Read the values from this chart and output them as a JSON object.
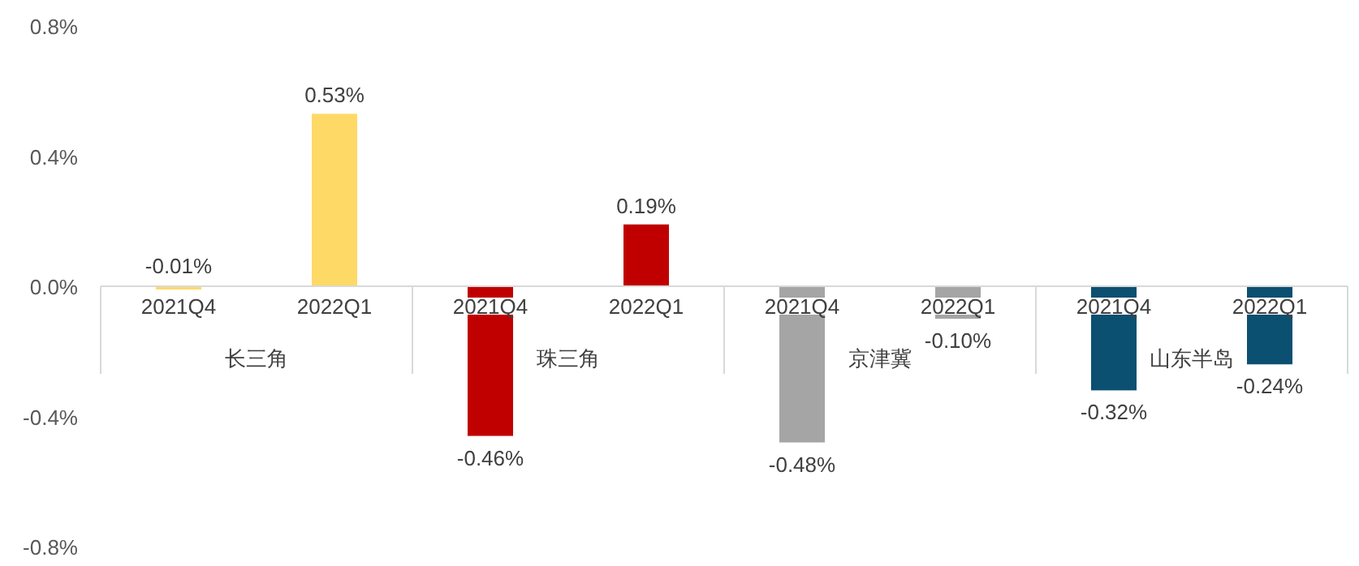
{
  "chart_data": {
    "type": "bar",
    "categories": [
      "2021Q4",
      "2022Q1",
      "2021Q4",
      "2022Q1",
      "2021Q4",
      "2022Q1",
      "2021Q4",
      "2022Q1"
    ],
    "series": [
      {
        "name": "长三角",
        "color": "#ffd966",
        "values": [
          -0.01,
          0.53,
          null,
          null,
          null,
          null,
          null,
          null
        ],
        "value_labels": [
          "-0.01%",
          "0.53%",
          null,
          null,
          null,
          null,
          null,
          null
        ]
      },
      {
        "name": "珠三角",
        "color": "#c00000",
        "values": [
          null,
          null,
          -0.46,
          0.19,
          null,
          null,
          null,
          null
        ],
        "value_labels": [
          null,
          null,
          "-0.46%",
          "0.19%",
          null,
          null,
          null,
          null
        ]
      },
      {
        "name": "京津冀",
        "color": "#a5a5a5",
        "values": [
          null,
          null,
          null,
          null,
          -0.48,
          -0.1,
          null,
          null
        ],
        "value_labels": [
          null,
          null,
          null,
          null,
          "-0.48%",
          "-0.10%",
          null,
          null
        ]
      },
      {
        "name": "山东半岛",
        "color": "#0b4f71",
        "values": [
          null,
          null,
          null,
          null,
          null,
          null,
          -0.32,
          -0.24
        ],
        "value_labels": [
          null,
          null,
          null,
          null,
          null,
          null,
          "-0.32%",
          "-0.24%"
        ]
      }
    ],
    "ylim": [
      -0.8,
      0.8
    ],
    "yticks": [
      {
        "value": 0.8,
        "label": "0.8%"
      },
      {
        "value": 0.4,
        "label": "0.4%"
      },
      {
        "value": 0.0,
        "label": "0.0%"
      },
      {
        "value": -0.4,
        "label": "-0.4%"
      },
      {
        "value": -0.8,
        "label": "-0.8%"
      }
    ],
    "grid": false,
    "legend": false
  }
}
